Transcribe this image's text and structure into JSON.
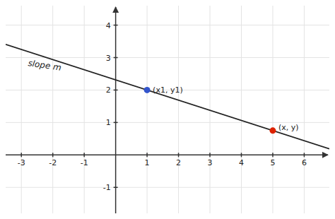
{
  "chart_data": {
    "type": "scatter",
    "xlim": [
      -3.5,
      6.8
    ],
    "ylim": [
      -1.8,
      4.6
    ],
    "xticks": [
      -3,
      -2,
      -1,
      1,
      2,
      3,
      4,
      5,
      6
    ],
    "yticks": [
      -1,
      1,
      2,
      3,
      4
    ],
    "grid": true,
    "series": [
      {
        "type": "line",
        "color": "#222222",
        "x": [
          -3.5,
          6.8
        ],
        "values": [
          3.40625,
          0.1875
        ]
      },
      {
        "color": "#3355cc",
        "x": [
          1
        ],
        "values": [
          2
        ]
      },
      {
        "color": "#dd2200",
        "x": [
          5
        ],
        "values": [
          0.75
        ]
      }
    ],
    "annotations": [
      {
        "text": "(x1, y1)",
        "x": 1,
        "y": 2
      },
      {
        "text": "(x, y)",
        "x": 5,
        "y": 0.75
      },
      {
        "text": "slope m",
        "x": -2.8,
        "y": 2.75
      }
    ]
  }
}
